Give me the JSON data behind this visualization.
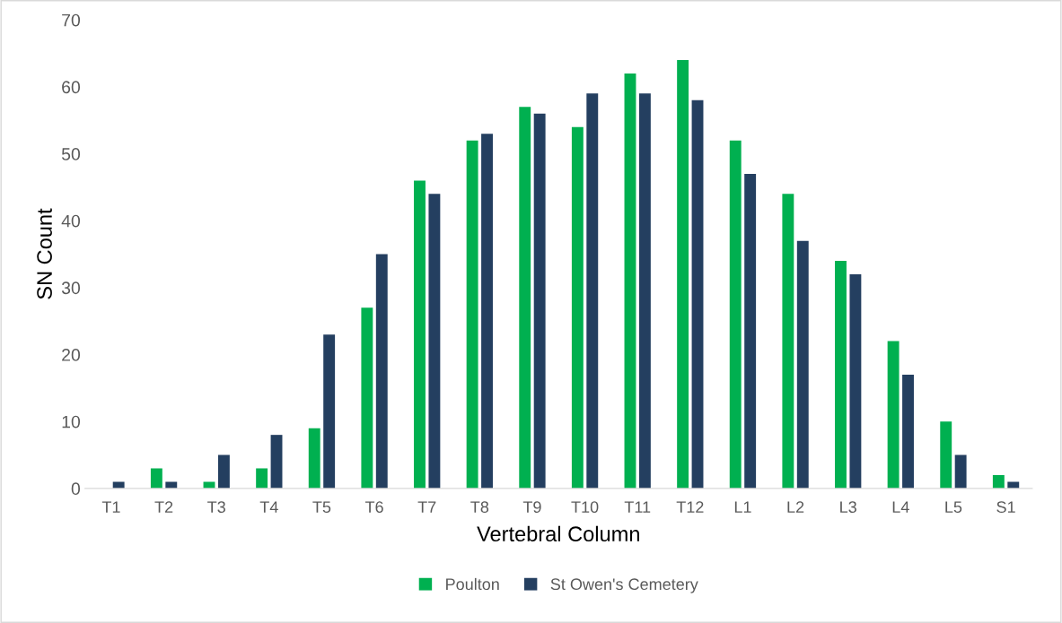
{
  "chart_data": {
    "type": "bar",
    "xlabel": "Vertebral Column",
    "ylabel": "SN Count",
    "categories": [
      "T1",
      "T2",
      "T3",
      "T4",
      "T5",
      "T6",
      "T7",
      "T8",
      "T9",
      "T10",
      "T11",
      "T12",
      "L1",
      "L2",
      "L3",
      "L4",
      "L5",
      "S1"
    ],
    "series": [
      {
        "name": "Poulton",
        "color": "#00b050",
        "values": [
          0,
          3,
          1,
          3,
          9,
          27,
          46,
          52,
          57,
          54,
          62,
          64,
          52,
          44,
          34,
          22,
          10,
          2
        ]
      },
      {
        "name": "St Owen's Cemetery",
        "color": "#243f60",
        "values": [
          1,
          1,
          5,
          8,
          23,
          35,
          44,
          53,
          56,
          59,
          59,
          58,
          47,
          37,
          32,
          17,
          5,
          1
        ]
      }
    ],
    "ylim": [
      0,
      70
    ],
    "yticks": [
      0,
      10,
      20,
      30,
      40,
      50,
      60,
      70
    ],
    "grid": false,
    "legend": "bottom"
  }
}
